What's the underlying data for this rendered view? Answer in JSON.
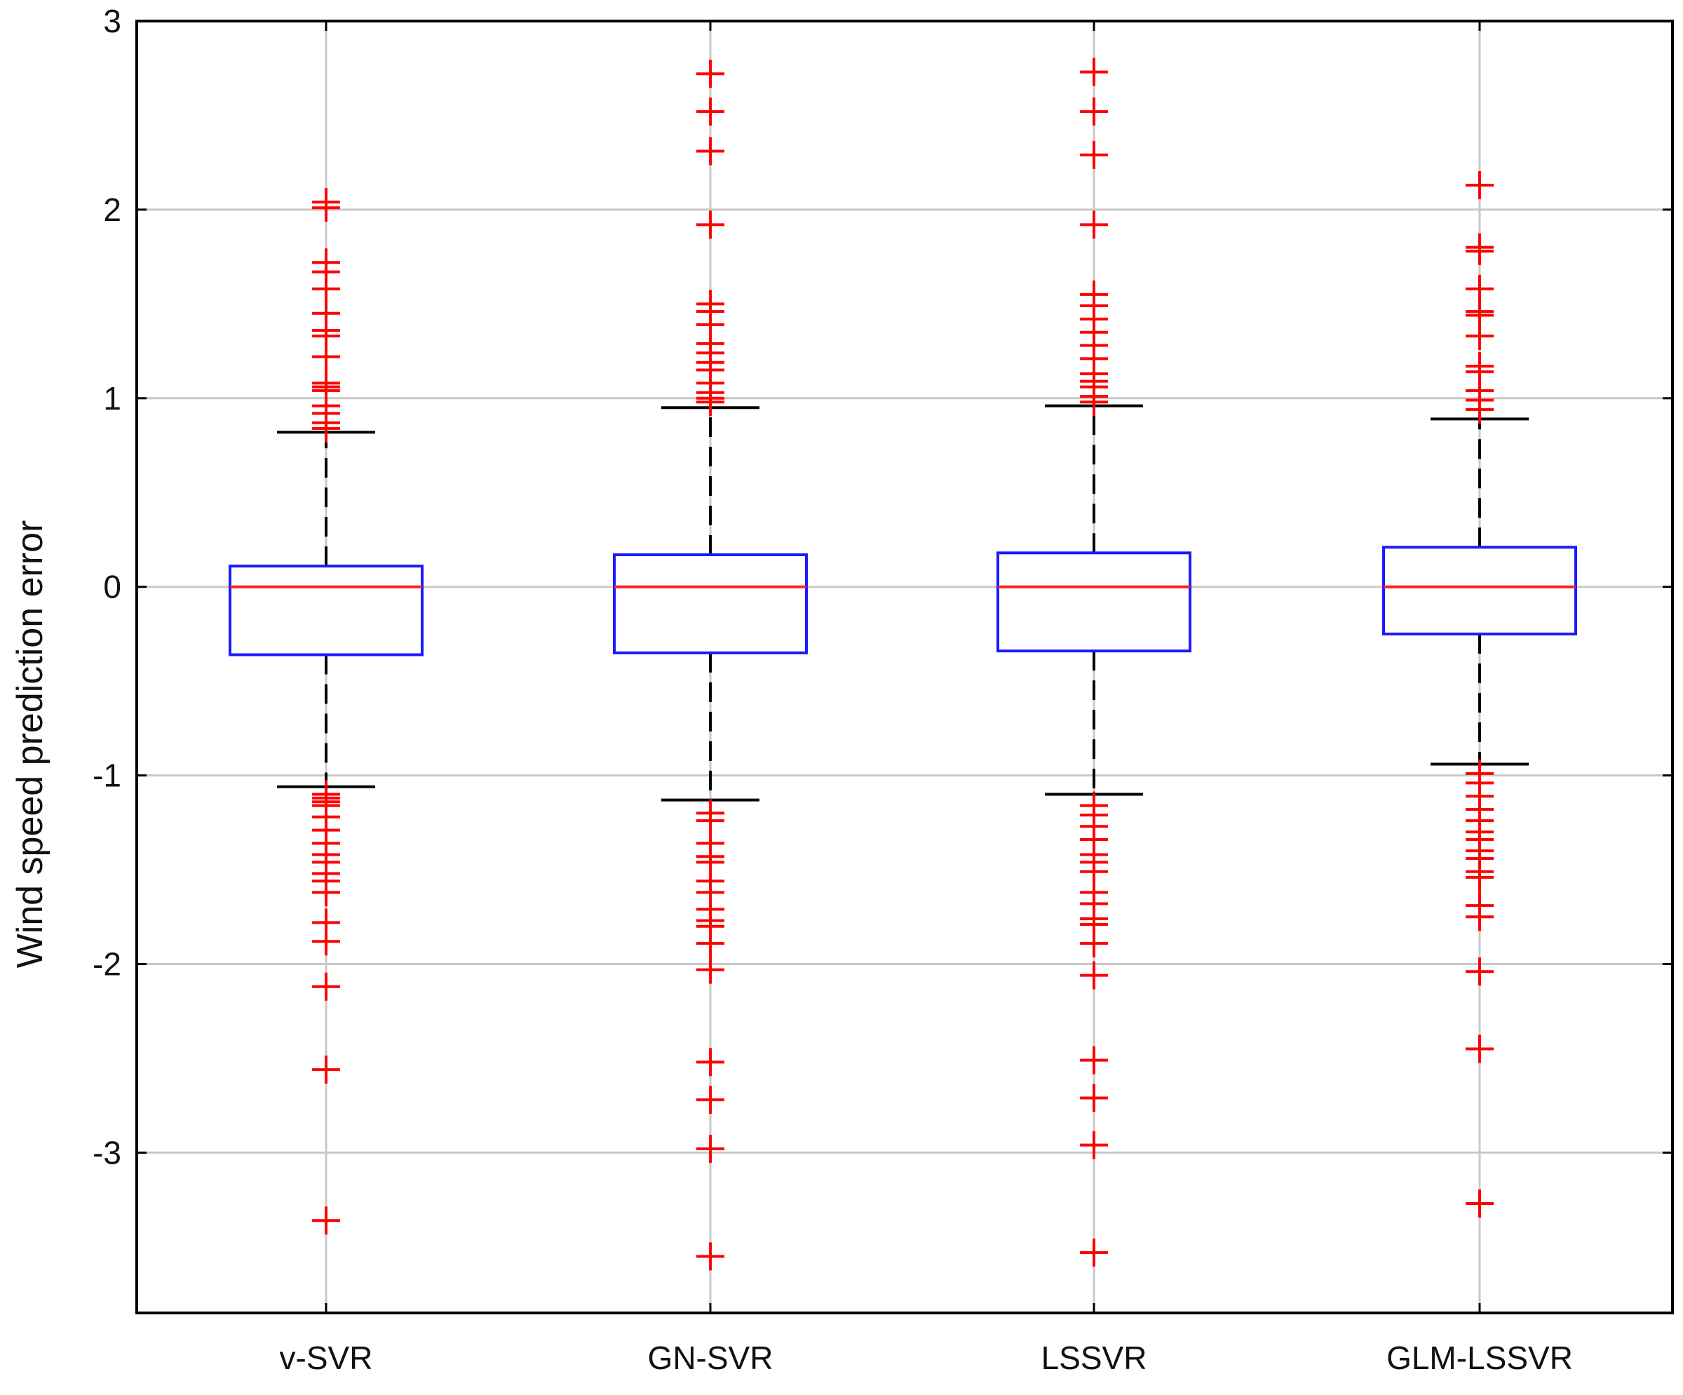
{
  "chart_data": {
    "type": "box",
    "title": "",
    "xlabel": "",
    "ylabel": "Wind speed prediction error",
    "ylim": [
      -3.85,
      3.0
    ],
    "yticks": [
      -3,
      -2,
      -1,
      0,
      1,
      2,
      3
    ],
    "ytick_labels": [
      "-3",
      "-2",
      "-1",
      "0",
      "1",
      "2",
      "3"
    ],
    "grid": true,
    "colors": {
      "box": "#1a1aff",
      "median": "#ff2020",
      "whisker": "#000000",
      "outlier": "#ff0000",
      "grid": "#c8c8c8",
      "axis": "#000000"
    },
    "categories": [
      "v-SVR",
      "GN-SVR",
      "LSSVR",
      "GLM-LSSVR"
    ],
    "boxes": [
      {
        "name": "v-SVR",
        "q1": -0.36,
        "median": 0.0,
        "q3": 0.11,
        "whisker_low": -1.06,
        "whisker_high": 0.82,
        "outliers": [
          2.04,
          2.01,
          1.72,
          1.67,
          1.58,
          1.45,
          1.36,
          1.33,
          1.22,
          1.08,
          1.06,
          1.04,
          0.96,
          0.92,
          0.87,
          0.84,
          -1.1,
          -1.12,
          -1.14,
          -1.16,
          -1.22,
          -1.29,
          -1.36,
          -1.42,
          -1.46,
          -1.52,
          -1.56,
          -1.62,
          -1.78,
          -1.88,
          -2.12,
          -2.56,
          -3.36
        ]
      },
      {
        "name": "GN-SVR",
        "q1": -0.35,
        "median": 0.0,
        "q3": 0.17,
        "whisker_low": -1.13,
        "whisker_high": 0.95,
        "outliers": [
          2.72,
          2.52,
          2.31,
          1.92,
          1.5,
          1.46,
          1.39,
          1.29,
          1.24,
          1.19,
          1.15,
          1.08,
          1.03,
          1.0,
          0.98,
          -1.2,
          -1.24,
          -1.36,
          -1.43,
          -1.46,
          -1.56,
          -1.62,
          -1.71,
          -1.77,
          -1.8,
          -1.89,
          -2.03,
          -2.52,
          -2.72,
          -2.98,
          -3.55
        ]
      },
      {
        "name": "LSSVR",
        "q1": -0.34,
        "median": 0.0,
        "q3": 0.18,
        "whisker_low": -1.1,
        "whisker_high": 0.96,
        "outliers": [
          2.73,
          2.52,
          2.29,
          1.92,
          1.55,
          1.49,
          1.42,
          1.35,
          1.28,
          1.21,
          1.13,
          1.09,
          1.06,
          1.01,
          0.98,
          -1.16,
          -1.21,
          -1.27,
          -1.34,
          -1.42,
          -1.46,
          -1.51,
          -1.62,
          -1.68,
          -1.76,
          -1.79,
          -1.89,
          -2.06,
          -2.51,
          -2.71,
          -2.96,
          -3.53
        ]
      },
      {
        "name": "GLM-LSSVR",
        "q1": -0.25,
        "median": 0.0,
        "q3": 0.21,
        "whisker_low": -0.94,
        "whisker_high": 0.89,
        "outliers": [
          2.13,
          1.8,
          1.78,
          1.58,
          1.46,
          1.44,
          1.33,
          1.17,
          1.14,
          1.04,
          0.99,
          0.94,
          -0.99,
          -1.04,
          -1.11,
          -1.18,
          -1.24,
          -1.3,
          -1.34,
          -1.4,
          -1.44,
          -1.51,
          -1.54,
          -1.69,
          -1.75,
          -2.04,
          -2.45,
          -3.27
        ]
      }
    ]
  }
}
